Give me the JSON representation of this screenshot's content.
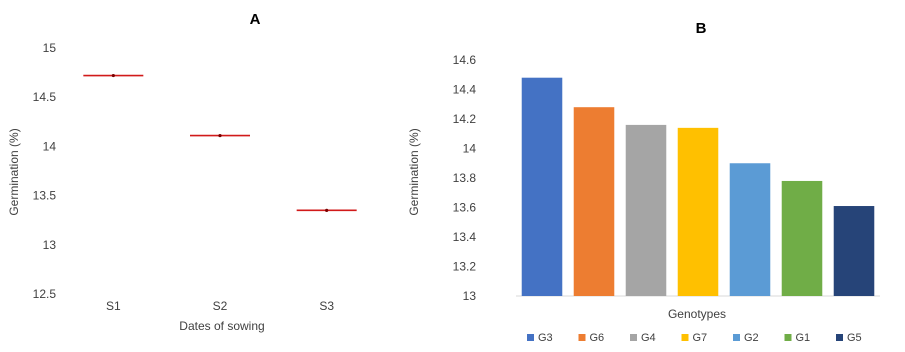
{
  "chart_data": [
    {
      "panel": "A",
      "type": "scatter",
      "marker": "horizontal red line",
      "color": "#d11a1a",
      "xlabel": "Dates of sowing",
      "ylabel": "Germination (%)",
      "categories": [
        "S1",
        "S2",
        "S3"
      ],
      "values": [
        14.72,
        14.11,
        13.35
      ],
      "ylim": [
        12.5,
        15
      ],
      "yticks": [
        "15",
        "14.5",
        "14",
        "13.5",
        "13",
        "12.5"
      ],
      "grid": false
    },
    {
      "panel": "B",
      "type": "bar",
      "xlabel": "Genotypes",
      "ylabel": "Germination (%)",
      "categories": [
        "G3",
        "G6",
        "G4",
        "G7",
        "G2",
        "G1",
        "G5"
      ],
      "values": [
        14.48,
        14.28,
        14.16,
        14.14,
        13.9,
        13.78,
        13.61
      ],
      "colors": [
        "#4472c4",
        "#ed7d31",
        "#a5a5a5",
        "#ffc000",
        "#5b9bd5",
        "#70ad47",
        "#264478"
      ],
      "ylim": [
        13,
        14.6
      ],
      "yticks": [
        "14.6",
        "14.4",
        "14.2",
        "14",
        "13.8",
        "13.6",
        "13.4",
        "13.2",
        "13"
      ],
      "legend": [
        "G3",
        "G6",
        "G4",
        "G7",
        "G2",
        "G1",
        "G5"
      ],
      "legend_position": "bottom",
      "grid": false
    }
  ]
}
